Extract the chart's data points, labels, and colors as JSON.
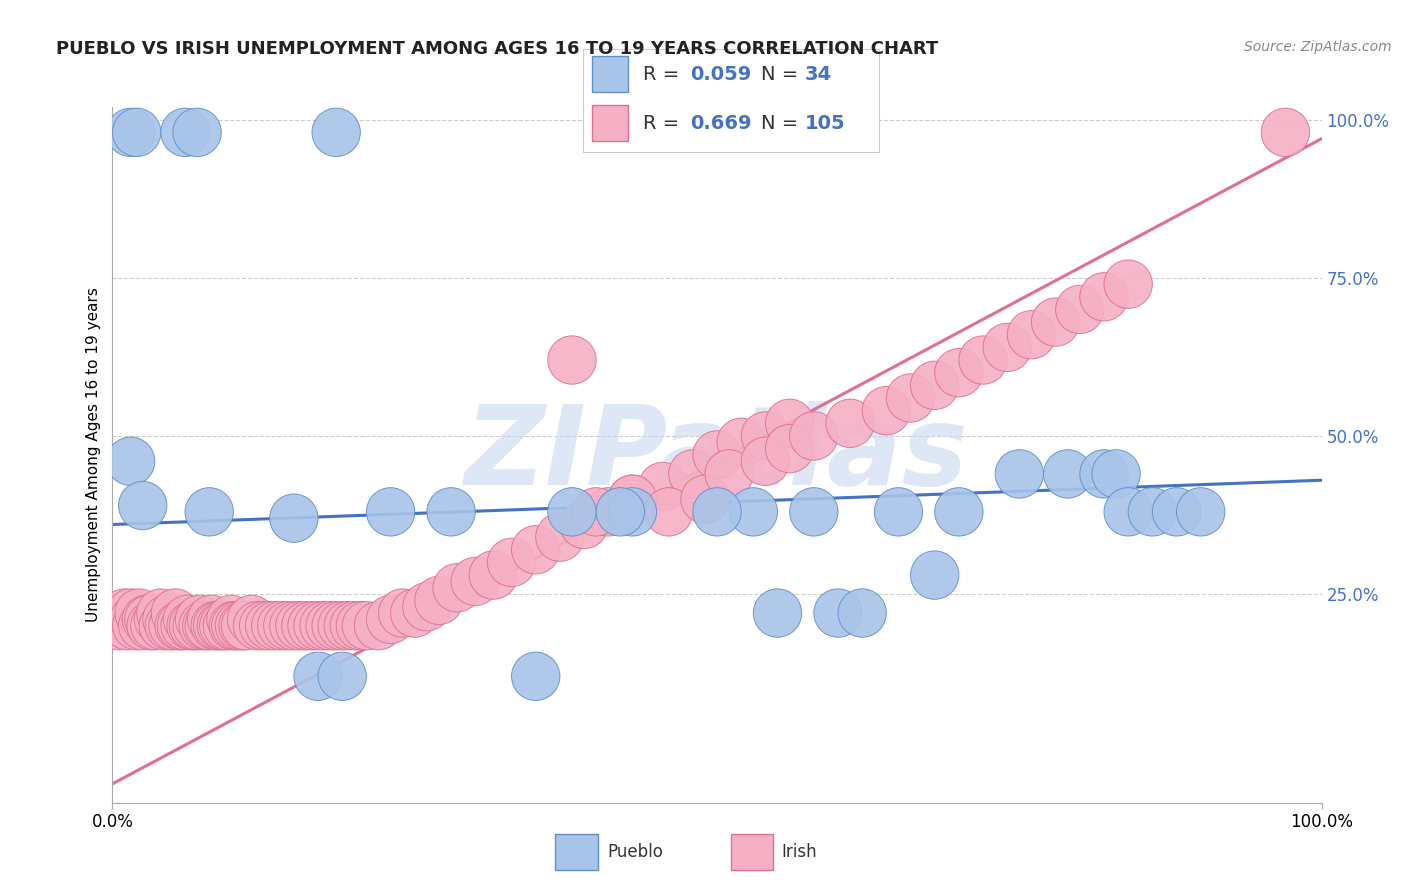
{
  "title": "PUEBLO VS IRISH UNEMPLOYMENT AMONG AGES 16 TO 19 YEARS CORRELATION CHART",
  "source_text": "Source: ZipAtlas.com",
  "ylabel": "Unemployment Among Ages 16 to 19 years",
  "xlim": [
    0.0,
    1.0
  ],
  "ylim": [
    -0.08,
    1.02
  ],
  "y_tick_vals": [
    0.25,
    0.5,
    0.75,
    1.0
  ],
  "y_tick_labels": [
    "25.0%",
    "50.0%",
    "75.0%",
    "100.0%"
  ],
  "pueblo_R": "0.059",
  "pueblo_N": "34",
  "irish_R": "0.669",
  "irish_N": "105",
  "pueblo_color": "#a8c4e8",
  "irish_color": "#f5b0c5",
  "pueblo_edge": "#6090c8",
  "irish_edge": "#e07090",
  "pueblo_line_color": "#4472c4",
  "irish_line_color": "#e07090",
  "right_tick_color": "#4472c4",
  "background_color": "#ffffff",
  "watermark_text": "ZIPatlas",
  "watermark_color": "#c8d8f0",
  "title_fontsize": 13,
  "source_fontsize": 10,
  "legend_text_color": "#333333",
  "legend_rn_color": "#4472c4",
  "pueblo_trend_x": [
    0.0,
    1.0
  ],
  "pueblo_trend_y": [
    0.36,
    0.43
  ],
  "irish_trend_x": [
    0.0,
    1.0
  ],
  "irish_trend_y": [
    -0.05,
    0.97
  ],
  "pueblo_pts_x": [
    0.015,
    0.02,
    0.06,
    0.07,
    0.185,
    0.015,
    0.025,
    0.08,
    0.15,
    0.17,
    0.23,
    0.28,
    0.38,
    0.43,
    0.53,
    0.58,
    0.65,
    0.7,
    0.75,
    0.79,
    0.82,
    0.83,
    0.84,
    0.86,
    0.88,
    0.9,
    0.55,
    0.6,
    0.62,
    0.68,
    0.19,
    0.35,
    0.42,
    0.5
  ],
  "pueblo_pts_y": [
    0.98,
    0.98,
    0.98,
    0.98,
    0.98,
    0.46,
    0.39,
    0.38,
    0.37,
    0.12,
    0.38,
    0.38,
    0.38,
    0.38,
    0.38,
    0.38,
    0.38,
    0.38,
    0.44,
    0.44,
    0.44,
    0.44,
    0.38,
    0.38,
    0.38,
    0.38,
    0.22,
    0.22,
    0.22,
    0.28,
    0.12,
    0.12,
    0.38,
    0.38
  ],
  "irish_pts_x": [
    0.005,
    0.01,
    0.012,
    0.015,
    0.018,
    0.02,
    0.022,
    0.025,
    0.028,
    0.03,
    0.032,
    0.035,
    0.038,
    0.04,
    0.042,
    0.045,
    0.047,
    0.05,
    0.052,
    0.055,
    0.057,
    0.06,
    0.062,
    0.065,
    0.067,
    0.07,
    0.072,
    0.075,
    0.078,
    0.08,
    0.082,
    0.085,
    0.087,
    0.09,
    0.092,
    0.095,
    0.098,
    0.1,
    0.102,
    0.105,
    0.108,
    0.11,
    0.115,
    0.12,
    0.125,
    0.13,
    0.135,
    0.14,
    0.145,
    0.15,
    0.155,
    0.16,
    0.165,
    0.17,
    0.175,
    0.18,
    0.185,
    0.19,
    0.195,
    0.2,
    0.205,
    0.21,
    0.22,
    0.23,
    0.24,
    0.25,
    0.26,
    0.27,
    0.285,
    0.3,
    0.315,
    0.33,
    0.35,
    0.37,
    0.39,
    0.41,
    0.43,
    0.455,
    0.48,
    0.5,
    0.52,
    0.54,
    0.56,
    0.38,
    0.4,
    0.43,
    0.46,
    0.49,
    0.51,
    0.54,
    0.56,
    0.58,
    0.61,
    0.64,
    0.66,
    0.68,
    0.7,
    0.72,
    0.74,
    0.76,
    0.78,
    0.8,
    0.82,
    0.84,
    0.97
  ],
  "irish_pts_y": [
    0.2,
    0.22,
    0.2,
    0.22,
    0.21,
    0.2,
    0.22,
    0.2,
    0.21,
    0.21,
    0.2,
    0.2,
    0.21,
    0.22,
    0.2,
    0.21,
    0.2,
    0.2,
    0.22,
    0.2,
    0.2,
    0.2,
    0.21,
    0.2,
    0.2,
    0.2,
    0.21,
    0.2,
    0.2,
    0.2,
    0.21,
    0.2,
    0.2,
    0.2,
    0.2,
    0.2,
    0.21,
    0.2,
    0.2,
    0.2,
    0.2,
    0.2,
    0.21,
    0.2,
    0.2,
    0.2,
    0.2,
    0.2,
    0.2,
    0.2,
    0.2,
    0.2,
    0.2,
    0.2,
    0.2,
    0.2,
    0.2,
    0.2,
    0.2,
    0.2,
    0.2,
    0.2,
    0.2,
    0.21,
    0.22,
    0.22,
    0.23,
    0.24,
    0.26,
    0.27,
    0.28,
    0.3,
    0.32,
    0.34,
    0.36,
    0.38,
    0.4,
    0.42,
    0.44,
    0.47,
    0.49,
    0.5,
    0.52,
    0.62,
    0.38,
    0.4,
    0.38,
    0.4,
    0.44,
    0.46,
    0.48,
    0.5,
    0.52,
    0.54,
    0.56,
    0.58,
    0.6,
    0.62,
    0.64,
    0.66,
    0.68,
    0.7,
    0.72,
    0.74,
    0.98
  ]
}
